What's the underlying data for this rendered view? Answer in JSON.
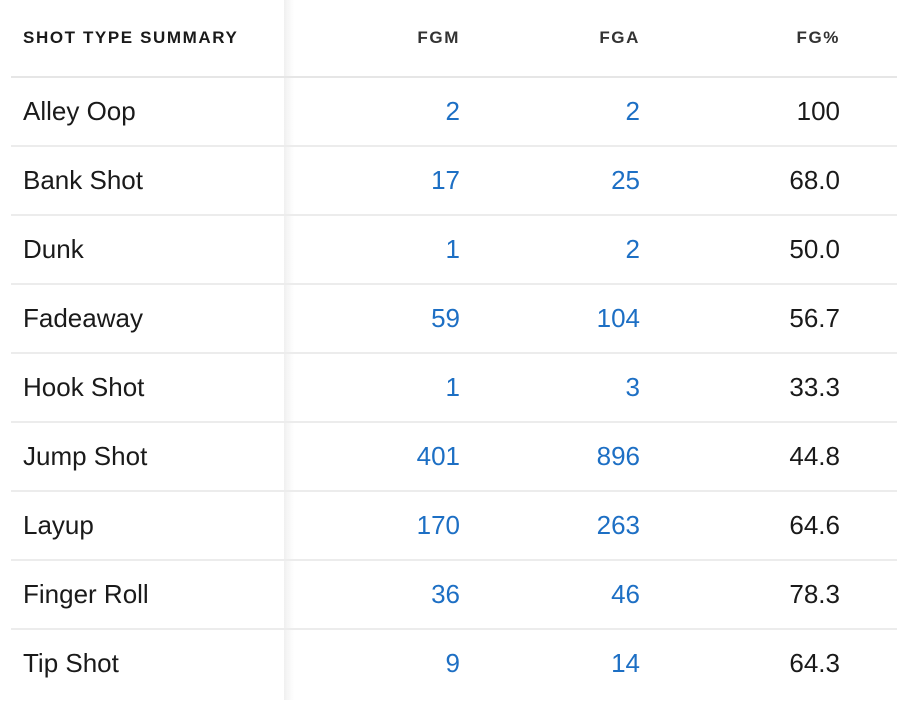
{
  "table": {
    "headers": {
      "name": "SHOT TYPE SUMMARY",
      "fgm": "FGM",
      "fga": "FGA",
      "pct": "FG%"
    },
    "rows": [
      {
        "shot_type": "Alley Oop",
        "fgm": "2",
        "fga": "2",
        "pct": "100"
      },
      {
        "shot_type": "Bank Shot",
        "fgm": "17",
        "fga": "25",
        "pct": "68.0"
      },
      {
        "shot_type": "Dunk",
        "fgm": "1",
        "fga": "2",
        "pct": "50.0"
      },
      {
        "shot_type": "Fadeaway",
        "fgm": "59",
        "fga": "104",
        "pct": "56.7"
      },
      {
        "shot_type": "Hook Shot",
        "fgm": "1",
        "fga": "3",
        "pct": "33.3"
      },
      {
        "shot_type": "Jump Shot",
        "fgm": "401",
        "fga": "896",
        "pct": "44.8"
      },
      {
        "shot_type": "Layup",
        "fgm": "170",
        "fga": "263",
        "pct": "64.6"
      },
      {
        "shot_type": "Finger Roll",
        "fgm": "36",
        "fga": "46",
        "pct": "78.3"
      },
      {
        "shot_type": "Tip Shot",
        "fgm": "9",
        "fga": "14",
        "pct": "64.3"
      }
    ]
  },
  "colors": {
    "link": "#1d6fc4",
    "text": "#1a1a1a",
    "row_border": "#ececec"
  }
}
